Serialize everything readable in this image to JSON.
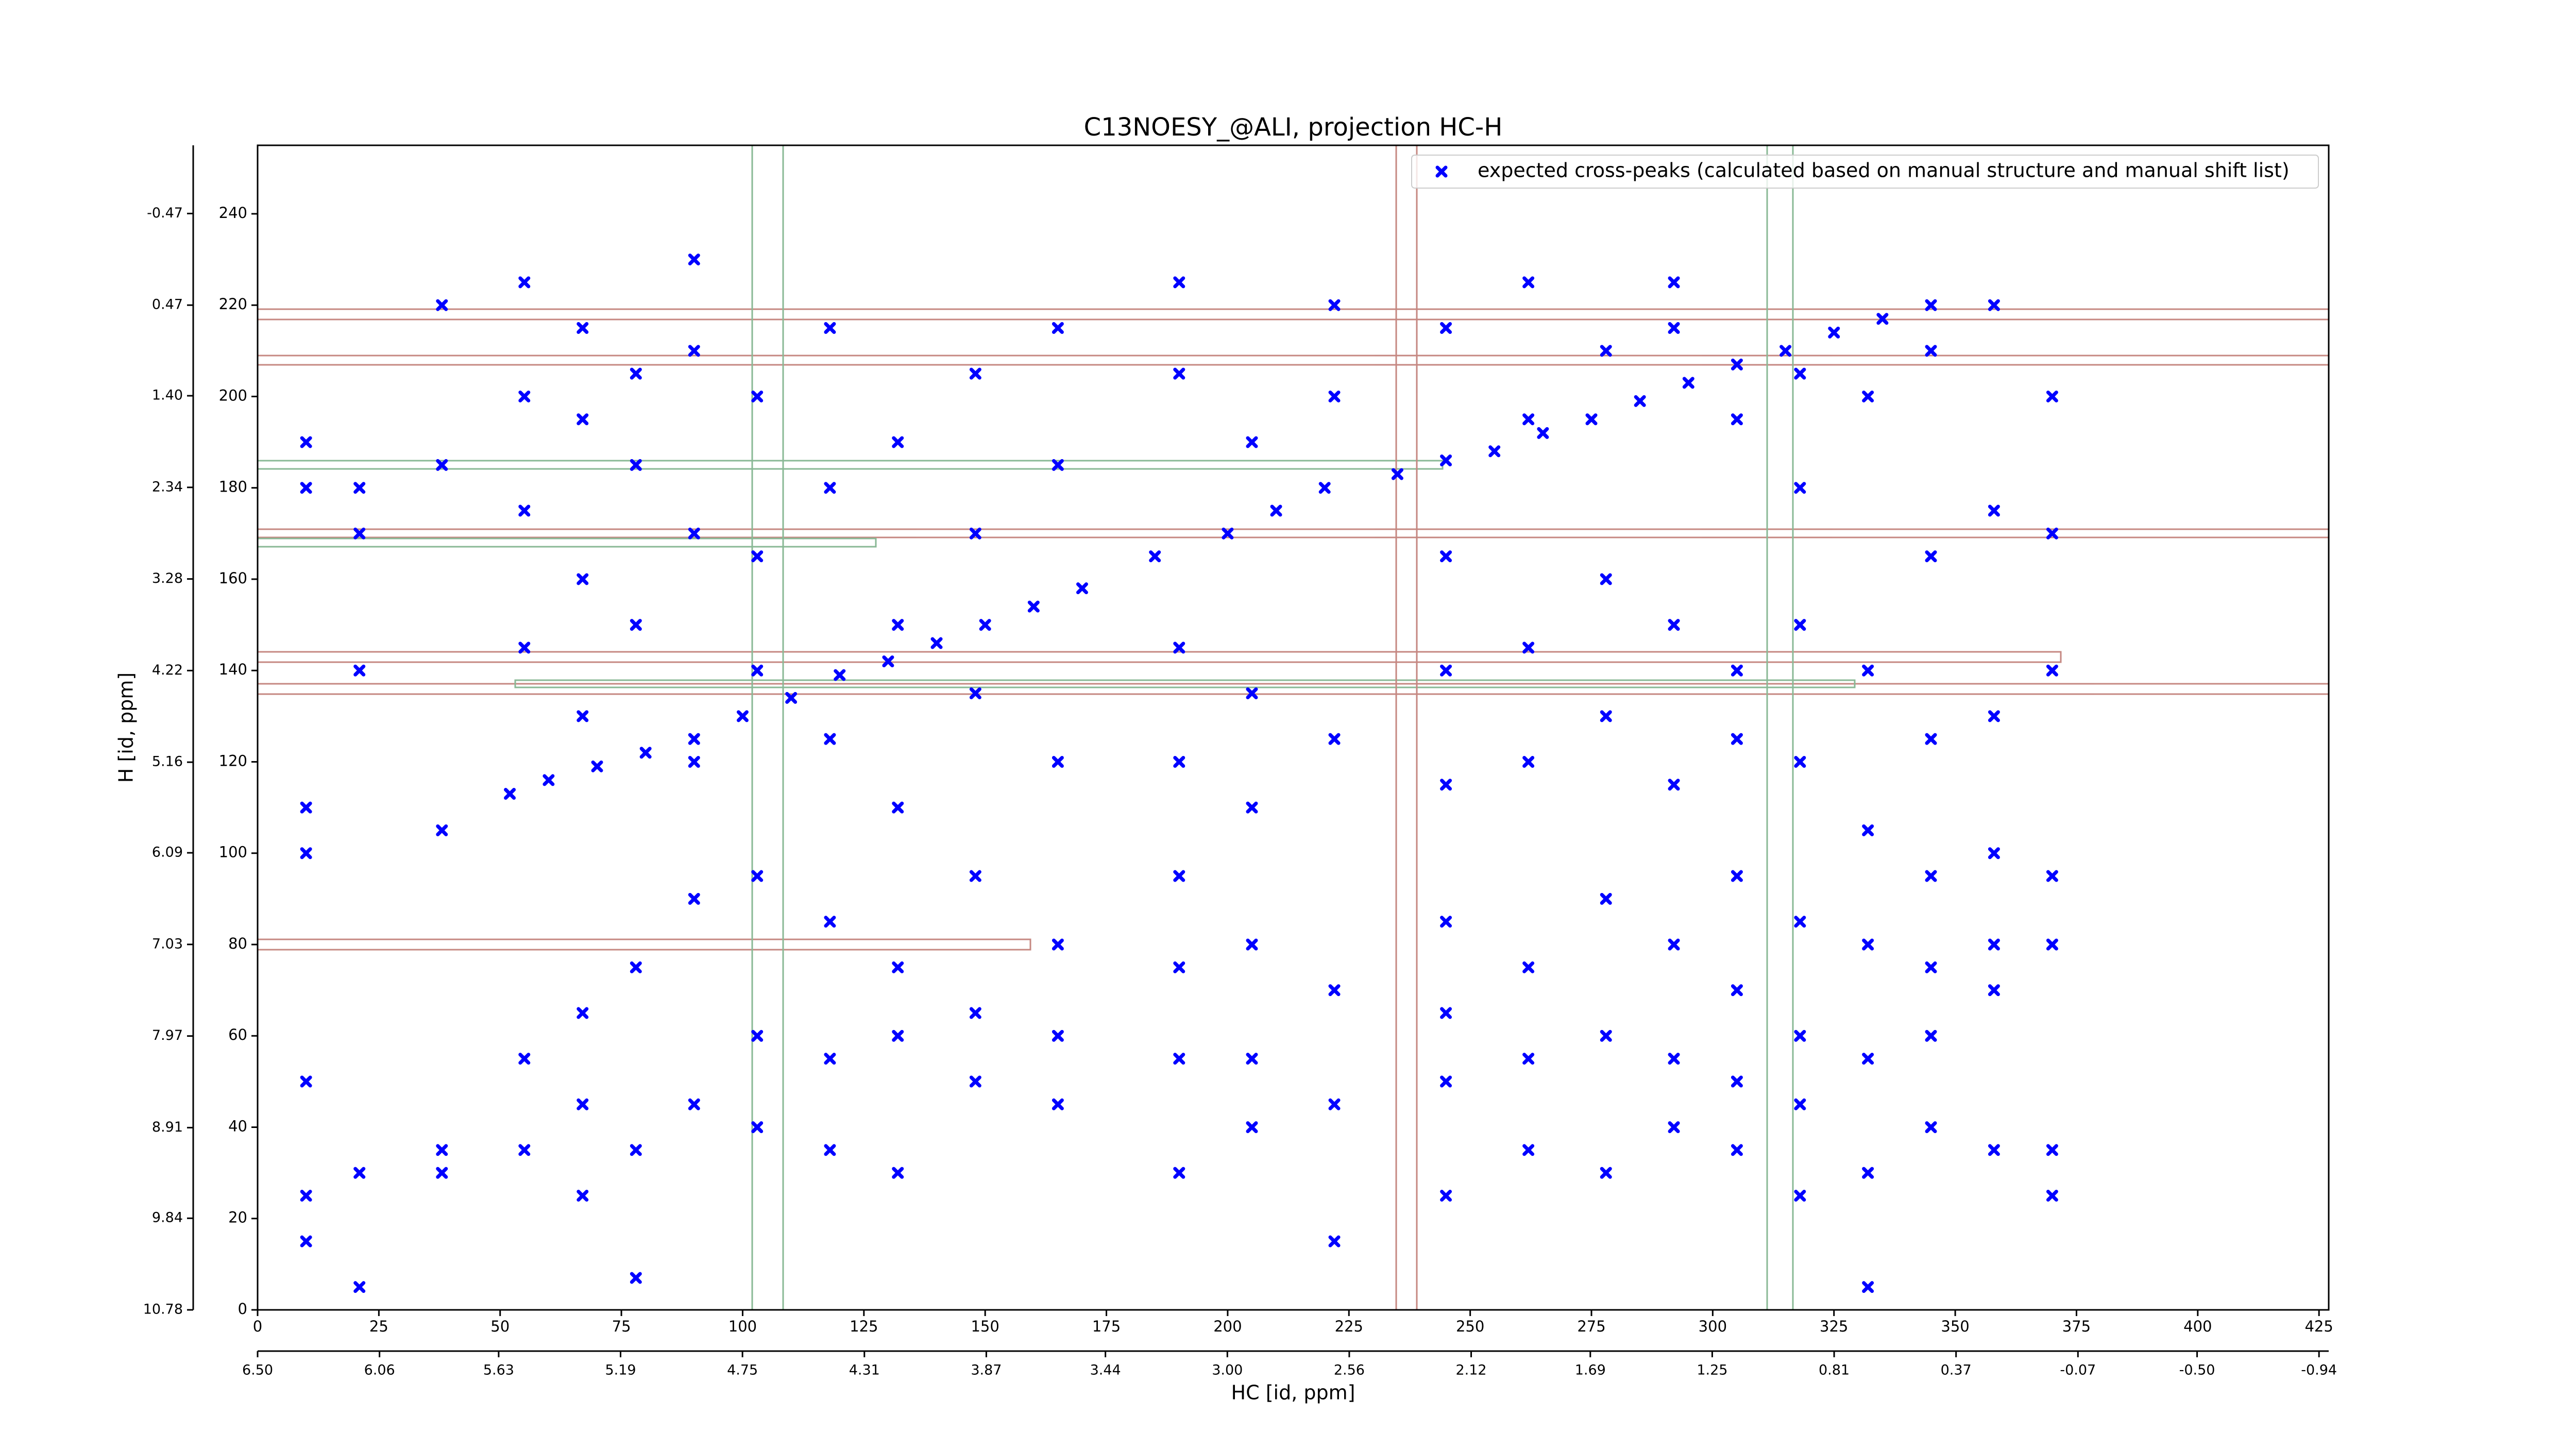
{
  "chart_data": {
    "type": "scatter",
    "title": "C13NOESY_@ALI, projection HC-H",
    "x_label": "HC [id, ppm]",
    "y_label": "H [id, ppm]",
    "xlim": [
      0,
      427
    ],
    "ylim": [
      0,
      255
    ],
    "xticks": [
      0,
      25,
      50,
      75,
      100,
      125,
      150,
      175,
      200,
      225,
      250,
      275,
      300,
      325,
      350,
      375,
      400,
      425
    ],
    "yticks": [
      0,
      20,
      40,
      60,
      80,
      100,
      120,
      140,
      160,
      180,
      200,
      220,
      240
    ],
    "x2lim": [
      6.5,
      -0.975
    ],
    "x2ticks": [
      {
        "value": 6.5,
        "label": "6.50"
      },
      6.06,
      5.63,
      5.19,
      4.75,
      4.31,
      3.87,
      3.44,
      {
        "value": 3,
        "label": "3.00"
      },
      2.56,
      2.12,
      1.69,
      1.25,
      0.81,
      0.37,
      -0.07,
      {
        "value": -0.5,
        "label": "-0.50"
      },
      -0.94
    ],
    "y2lim": [
      10.78,
      -1.17
    ],
    "y2ticks": [
      10.78,
      9.84,
      8.91,
      7.97,
      7.03,
      6.09,
      5.16,
      4.22,
      3.28,
      2.34,
      {
        "value": 1.4,
        "label": "1.40"
      },
      0.47,
      -0.47
    ],
    "legend": "upper right",
    "series": [
      {
        "name": "expected cross-peaks (calculated based on manual structure and manual shift list)",
        "color": "#0000ff",
        "x": [
          52,
          60,
          70,
          80,
          90,
          100,
          110,
          120,
          130,
          140,
          150,
          160,
          170,
          185,
          200,
          210,
          220,
          235,
          245,
          255,
          265,
          275,
          285,
          295,
          305,
          315,
          325,
          335,
          345,
          10,
          10,
          10,
          10,
          10,
          10,
          10,
          21,
          21,
          21,
          21,
          21,
          38,
          38,
          38,
          38,
          38,
          55,
          55,
          55,
          55,
          55,
          55,
          67,
          67,
          67,
          67,
          67,
          67,
          67,
          78,
          78,
          78,
          78,
          78,
          78,
          90,
          90,
          90,
          90,
          90,
          90,
          103,
          103,
          103,
          103,
          103,
          103,
          118,
          118,
          118,
          118,
          118,
          118,
          132,
          132,
          132,
          132,
          132,
          132,
          148,
          148,
          148,
          148,
          148,
          148,
          165,
          165,
          165,
          165,
          165,
          165,
          190,
          190,
          190,
          190,
          190,
          190,
          190,
          190,
          205,
          205,
          205,
          205,
          205,
          205,
          222,
          222,
          222,
          222,
          222,
          222,
          245,
          245,
          245,
          245,
          245,
          245,
          245,
          245,
          262,
          262,
          262,
          262,
          262,
          262,
          262,
          278,
          278,
          278,
          278,
          278,
          278,
          292,
          292,
          292,
          292,
          292,
          292,
          292,
          305,
          305,
          305,
          305,
          305,
          305,
          305,
          318,
          318,
          318,
          318,
          318,
          318,
          318,
          318,
          332,
          332,
          332,
          332,
          332,
          332,
          332,
          345,
          345,
          345,
          345,
          345,
          345,
          345,
          358,
          358,
          358,
          358,
          358,
          358,
          358,
          370,
          370,
          370,
          370,
          370,
          370,
          370
        ],
        "values": [
          113,
          116,
          119,
          122,
          125,
          130,
          134,
          139,
          142,
          146,
          150,
          154,
          158,
          165,
          170,
          175,
          180,
          183,
          186,
          188,
          192,
          195,
          199,
          203,
          207,
          210,
          214,
          217,
          220,
          15,
          25,
          50,
          100,
          110,
          180,
          190,
          5,
          30,
          140,
          170,
          180,
          30,
          35,
          105,
          185,
          220,
          35,
          55,
          145,
          175,
          200,
          225,
          25,
          45,
          65,
          130,
          160,
          195,
          215,
          7,
          35,
          75,
          150,
          185,
          205,
          45,
          90,
          120,
          170,
          210,
          230,
          40,
          60,
          95,
          140,
          165,
          200,
          35,
          55,
          85,
          125,
          180,
          215,
          30,
          60,
          75,
          110,
          150,
          190,
          50,
          65,
          95,
          135,
          170,
          205,
          45,
          60,
          80,
          120,
          185,
          215,
          30,
          55,
          75,
          95,
          120,
          145,
          205,
          225,
          40,
          55,
          80,
          110,
          135,
          190,
          15,
          45,
          70,
          125,
          200,
          220,
          25,
          50,
          65,
          85,
          115,
          140,
          165,
          215,
          35,
          55,
          75,
          120,
          145,
          195,
          225,
          30,
          60,
          90,
          130,
          160,
          210,
          40,
          55,
          80,
          115,
          150,
          215,
          225,
          35,
          50,
          70,
          95,
          125,
          140,
          195,
          25,
          45,
          60,
          85,
          120,
          150,
          180,
          205,
          5,
          30,
          55,
          80,
          105,
          140,
          200,
          40,
          60,
          75,
          95,
          125,
          165,
          210,
          35,
          70,
          80,
          100,
          130,
          175,
          220,
          25,
          35,
          80,
          95,
          140,
          170,
          200
        ]
      }
    ]
  }
}
